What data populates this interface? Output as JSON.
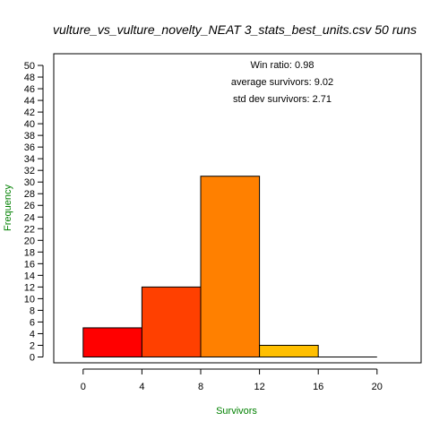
{
  "chart_data": {
    "type": "bar",
    "title": "vulture_vs_vulture_novelty_NEAT 3_stats_best_units.csv 50 runs",
    "xlabel": "Survivors",
    "ylabel": "Frequency",
    "xlim": [
      -2,
      23
    ],
    "ylim": [
      -1,
      52
    ],
    "x_ticks": [
      "0",
      "4",
      "8",
      "12",
      "16",
      "20"
    ],
    "y_ticks": [
      "0",
      "2",
      "4",
      "6",
      "8",
      "10",
      "12",
      "14",
      "16",
      "18",
      "20",
      "22",
      "24",
      "26",
      "28",
      "30",
      "32",
      "34",
      "36",
      "38",
      "40",
      "42",
      "44",
      "46",
      "48",
      "50"
    ],
    "bins": [
      {
        "start": 0,
        "end": 4,
        "value": 5,
        "color": "#FF0000"
      },
      {
        "start": 4,
        "end": 8,
        "value": 12,
        "color": "#FF4000"
      },
      {
        "start": 8,
        "end": 12,
        "value": 31,
        "color": "#FF8000"
      },
      {
        "start": 12,
        "end": 16,
        "value": 2,
        "color": "#FFBF00"
      },
      {
        "start": 16,
        "end": 20,
        "value": 0,
        "color": "#FFFF00"
      }
    ],
    "annotations": [
      "Win ratio: 0.98",
      "average survivors: 9.02",
      "std dev survivors: 2.71"
    ]
  }
}
